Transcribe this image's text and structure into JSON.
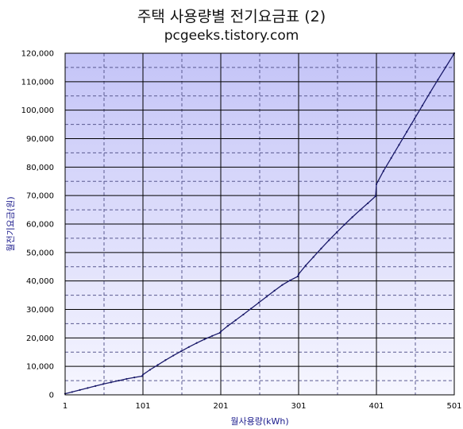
{
  "chart_data": {
    "type": "line",
    "title": "주택 사용량별 전기요금표 (2)",
    "subtitle": "pcgeeks.tistory.com",
    "xlabel": "월사용량(kWh)",
    "ylabel": "월전기요금(원)",
    "xlim": [
      1,
      501
    ],
    "ylim": [
      0,
      120000
    ],
    "x_ticks": [
      1,
      101,
      201,
      301,
      401,
      501
    ],
    "y_ticks": [
      0,
      10000,
      20000,
      30000,
      40000,
      50000,
      60000,
      70000,
      80000,
      90000,
      100000,
      110000,
      120000
    ],
    "y_tick_labels": [
      "0",
      "10,000",
      "20,000",
      "30,000",
      "40,000",
      "50,000",
      "60,000",
      "70,000",
      "80,000",
      "90,000",
      "100,000",
      "110,000",
      "120,000"
    ],
    "grid": true,
    "series": [
      {
        "x": [
          1,
          10,
          20,
          30,
          40,
          50,
          60,
          70,
          80,
          90,
          100,
          101,
          110,
          120,
          130,
          140,
          150,
          160,
          170,
          180,
          190,
          200,
          201,
          210,
          220,
          230,
          240,
          250,
          260,
          270,
          280,
          290,
          300,
          301,
          310,
          320,
          330,
          340,
          350,
          360,
          370,
          380,
          390,
          400,
          401,
          410,
          420,
          430,
          440,
          450,
          460,
          470,
          480,
          490,
          500,
          501
        ],
        "y": [
          400,
          1000,
          1700,
          2400,
          3100,
          3800,
          4400,
          5000,
          5600,
          6100,
          6600,
          7100,
          8800,
          10500,
          12200,
          13800,
          15300,
          16800,
          18200,
          19500,
          20700,
          21800,
          22200,
          24200,
          26200,
          28200,
          30300,
          32400,
          34500,
          36600,
          38600,
          40200,
          41600,
          42400,
          45400,
          48400,
          51400,
          54300,
          57100,
          59800,
          62400,
          64900,
          67300,
          69800,
          74000,
          78600,
          83200,
          87800,
          92400,
          97000,
          101600,
          106200,
          110700,
          115100,
          119500,
          120000
        ]
      }
    ],
    "colors": {
      "plot_gradient_top": "#c4c4f7",
      "plot_gradient_bottom": "#f6f6ff",
      "grid_major": "#000000",
      "grid_minor": "#5a5a90",
      "line": "#1a1a6a",
      "axis_title": "#1a1a8c"
    }
  }
}
